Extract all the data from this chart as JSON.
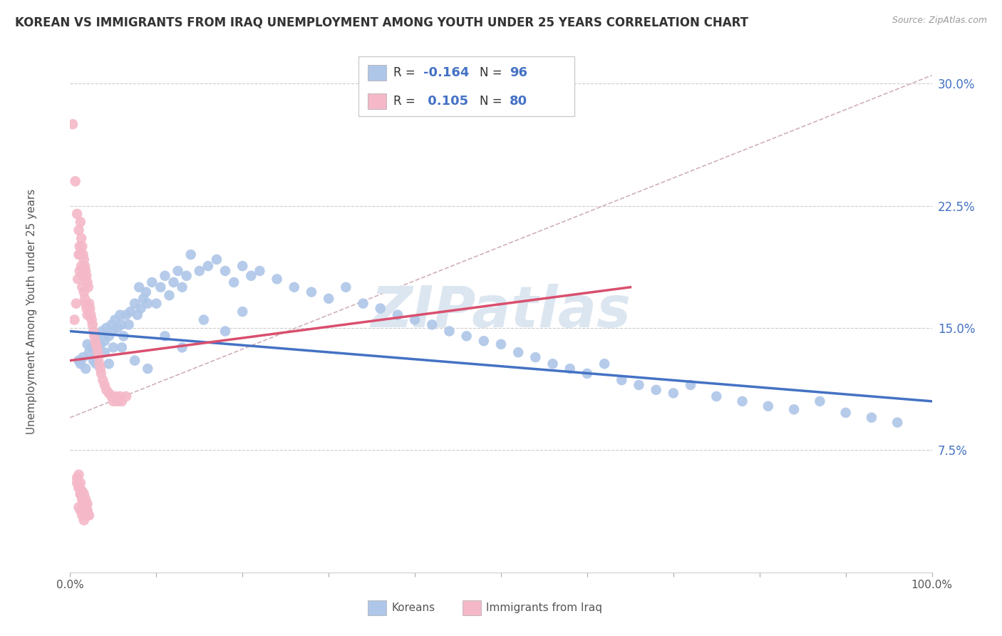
{
  "title": "KOREAN VS IMMIGRANTS FROM IRAQ UNEMPLOYMENT AMONG YOUTH UNDER 25 YEARS CORRELATION CHART",
  "source": "Source: ZipAtlas.com",
  "ylabel": "Unemployment Among Youth under 25 years",
  "ytick_labels": [
    "7.5%",
    "15.0%",
    "22.5%",
    "30.0%"
  ],
  "ytick_values": [
    0.075,
    0.15,
    0.225,
    0.3
  ],
  "xrange": [
    0.0,
    1.0
  ],
  "yrange": [
    0.0,
    0.32
  ],
  "korean_color": "#aec6e8",
  "iraq_color": "#f4b8c8",
  "korean_line_color": "#4472c4",
  "iraq_line_color": "#d94f6e",
  "dash_line_color": "#d0b0b8",
  "watermark_text": "ZIPatlas",
  "watermark_color": "#dce6f0",
  "background_color": "#ffffff",
  "legend_r1": "-0.164",
  "legend_n1": "96",
  "legend_r2": "0.105",
  "legend_n2": "80",
  "korean_scatter_x": [
    0.01,
    0.012,
    0.015,
    0.018,
    0.02,
    0.022,
    0.025,
    0.027,
    0.03,
    0.03,
    0.032,
    0.035,
    0.037,
    0.04,
    0.04,
    0.042,
    0.045,
    0.048,
    0.05,
    0.05,
    0.052,
    0.055,
    0.058,
    0.06,
    0.062,
    0.065,
    0.068,
    0.07,
    0.075,
    0.078,
    0.08,
    0.082,
    0.085,
    0.088,
    0.09,
    0.095,
    0.1,
    0.105,
    0.11,
    0.115,
    0.12,
    0.125,
    0.13,
    0.135,
    0.14,
    0.15,
    0.16,
    0.17,
    0.18,
    0.19,
    0.2,
    0.21,
    0.22,
    0.24,
    0.26,
    0.28,
    0.3,
    0.32,
    0.34,
    0.36,
    0.38,
    0.4,
    0.42,
    0.44,
    0.46,
    0.48,
    0.5,
    0.52,
    0.54,
    0.56,
    0.58,
    0.6,
    0.62,
    0.64,
    0.66,
    0.68,
    0.7,
    0.72,
    0.75,
    0.78,
    0.81,
    0.84,
    0.87,
    0.9,
    0.93,
    0.96,
    0.03,
    0.045,
    0.06,
    0.075,
    0.09,
    0.11,
    0.13,
    0.155,
    0.18,
    0.2
  ],
  "korean_scatter_y": [
    0.13,
    0.128,
    0.132,
    0.125,
    0.14,
    0.135,
    0.138,
    0.13,
    0.142,
    0.128,
    0.145,
    0.14,
    0.148,
    0.135,
    0.142,
    0.15,
    0.145,
    0.152,
    0.148,
    0.138,
    0.155,
    0.15,
    0.158,
    0.152,
    0.145,
    0.158,
    0.152,
    0.16,
    0.165,
    0.158,
    0.175,
    0.162,
    0.168,
    0.172,
    0.165,
    0.178,
    0.165,
    0.175,
    0.182,
    0.17,
    0.178,
    0.185,
    0.175,
    0.182,
    0.195,
    0.185,
    0.188,
    0.192,
    0.185,
    0.178,
    0.188,
    0.182,
    0.185,
    0.18,
    0.175,
    0.172,
    0.168,
    0.175,
    0.165,
    0.162,
    0.158,
    0.155,
    0.152,
    0.148,
    0.145,
    0.142,
    0.14,
    0.135,
    0.132,
    0.128,
    0.125,
    0.122,
    0.128,
    0.118,
    0.115,
    0.112,
    0.11,
    0.115,
    0.108,
    0.105,
    0.102,
    0.1,
    0.105,
    0.098,
    0.095,
    0.092,
    0.135,
    0.128,
    0.138,
    0.13,
    0.125,
    0.145,
    0.138,
    0.155,
    0.148,
    0.16
  ],
  "iraq_scatter_x": [
    0.003,
    0.005,
    0.006,
    0.007,
    0.008,
    0.009,
    0.01,
    0.01,
    0.011,
    0.011,
    0.012,
    0.012,
    0.013,
    0.013,
    0.014,
    0.014,
    0.015,
    0.015,
    0.016,
    0.016,
    0.017,
    0.017,
    0.018,
    0.018,
    0.019,
    0.019,
    0.02,
    0.02,
    0.021,
    0.022,
    0.023,
    0.024,
    0.025,
    0.026,
    0.027,
    0.028,
    0.029,
    0.03,
    0.031,
    0.032,
    0.033,
    0.034,
    0.035,
    0.036,
    0.038,
    0.04,
    0.042,
    0.045,
    0.048,
    0.05,
    0.053,
    0.055,
    0.058,
    0.06,
    0.065,
    0.008,
    0.01,
    0.012,
    0.014,
    0.016,
    0.018,
    0.02,
    0.022,
    0.01,
    0.012,
    0.014,
    0.016,
    0.018,
    0.02,
    0.008,
    0.01,
    0.012,
    0.014,
    0.016,
    0.018,
    0.02,
    0.01,
    0.012,
    0.014,
    0.016
  ],
  "iraq_scatter_y": [
    0.275,
    0.155,
    0.24,
    0.165,
    0.22,
    0.18,
    0.21,
    0.195,
    0.2,
    0.185,
    0.215,
    0.195,
    0.205,
    0.188,
    0.2,
    0.175,
    0.195,
    0.182,
    0.192,
    0.172,
    0.188,
    0.168,
    0.185,
    0.165,
    0.182,
    0.162,
    0.178,
    0.158,
    0.175,
    0.165,
    0.162,
    0.158,
    0.155,
    0.152,
    0.148,
    0.145,
    0.142,
    0.14,
    0.138,
    0.135,
    0.132,
    0.128,
    0.125,
    0.122,
    0.118,
    0.115,
    0.112,
    0.11,
    0.108,
    0.105,
    0.108,
    0.105,
    0.108,
    0.105,
    0.108,
    0.055,
    0.052,
    0.048,
    0.045,
    0.042,
    0.04,
    0.038,
    0.035,
    0.06,
    0.055,
    0.05,
    0.048,
    0.045,
    0.042,
    0.058,
    0.052,
    0.048,
    0.045,
    0.042,
    0.038,
    0.035,
    0.04,
    0.038,
    0.035,
    0.032
  ],
  "korean_trend_x": [
    0.0,
    1.0
  ],
  "korean_trend_y": [
    0.148,
    0.105
  ],
  "iraq_trend_x": [
    0.0,
    0.65
  ],
  "iraq_trend_y": [
    0.13,
    0.175
  ],
  "dash_trend_x": [
    0.0,
    1.0
  ],
  "dash_trend_y": [
    0.095,
    0.305
  ]
}
